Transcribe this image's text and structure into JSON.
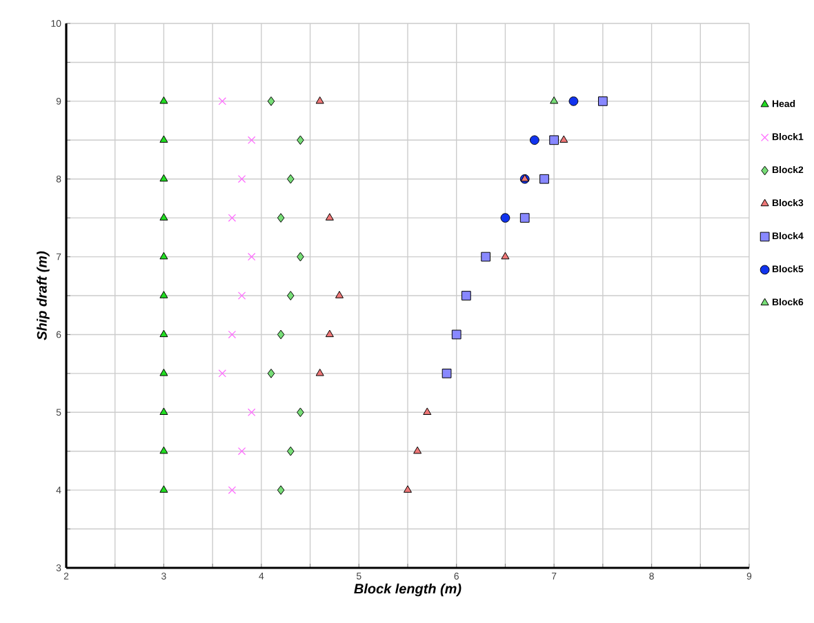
{
  "chart_data": {
    "type": "scatter",
    "xlabel": "Block length (m)",
    "ylabel": "Ship draft (m)",
    "xlim": [
      2,
      9
    ],
    "ylim": [
      3,
      10
    ],
    "xticks": [
      2,
      {
        "value": 2.5,
        "label": null
      },
      3,
      {
        "value": 3.5,
        "label": null
      },
      4,
      {
        "value": 4.5,
        "label": null
      },
      5,
      {
        "value": 5.5,
        "label": null
      },
      6,
      {
        "value": 6.5,
        "label": null
      },
      7,
      {
        "value": 7.5,
        "label": null
      },
      8,
      {
        "value": 8.5,
        "label": null
      },
      9
    ],
    "yticks": [
      3,
      {
        "value": 3.5,
        "label": null
      },
      4,
      {
        "value": 4.5,
        "label": null
      },
      5,
      {
        "value": 5.5,
        "label": null
      },
      6,
      {
        "value": 6.5,
        "label": null
      },
      7,
      {
        "value": 7.5,
        "label": null
      },
      8,
      {
        "value": 8.5,
        "label": null
      },
      9,
      {
        "value": 9.5,
        "label": null
      },
      10
    ],
    "grid": true,
    "legend": "right",
    "series": [
      {
        "name": "Head",
        "color": "#22dd22",
        "marker": "triangle",
        "x": [
          3,
          3,
          3,
          3,
          3,
          3,
          3,
          3,
          3,
          3,
          3
        ],
        "values": [
          9,
          8.5,
          8,
          7.5,
          7,
          6.5,
          6,
          5.5,
          5,
          4.5,
          4
        ]
      },
      {
        "name": "Block1",
        "color": "#ff66ff",
        "marker": "cross",
        "x": [
          3.6,
          3.9,
          3.8,
          3.7,
          3.9,
          3.8,
          3.7,
          3.6,
          3.9,
          3.8,
          3.7
        ],
        "values": [
          9,
          8.5,
          8,
          7.5,
          7,
          6.5,
          6,
          5.5,
          5,
          4.5,
          4
        ]
      },
      {
        "name": "Block2",
        "color": "#77dd77",
        "marker": "diamond",
        "x": [
          4.1,
          4.4,
          4.3,
          4.2,
          4.4,
          4.3,
          4.2,
          4.1,
          4.4,
          4.3,
          4.2
        ],
        "values": [
          9,
          8.5,
          8,
          7.5,
          7,
          6.5,
          6,
          5.5,
          5,
          4.5,
          4
        ]
      },
      {
        "name": "Block3",
        "color": "#ee7777",
        "marker": "triangle",
        "x": [
          4.6,
          7.1,
          6.7,
          4.7,
          6.5,
          4.8,
          4.7,
          4.6,
          5.7,
          5.6,
          5.5
        ],
        "values": [
          9,
          8.5,
          8,
          7.5,
          7,
          6.5,
          6,
          5.5,
          5,
          4.5,
          4
        ]
      },
      {
        "name": "Block4",
        "color": "#8888ff",
        "marker": "square",
        "x": [
          7.5,
          7.0,
          6.9,
          6.7,
          6.3,
          6.1,
          6.0,
          5.9
        ],
        "values": [
          9,
          8.5,
          8,
          7.5,
          7,
          6.5,
          6,
          5.5
        ]
      },
      {
        "name": "Block5",
        "color": "#1133ee",
        "marker": "circle",
        "x": [
          7.2,
          6.8,
          6.7,
          6.5
        ],
        "values": [
          9,
          8.5,
          8,
          7.5
        ]
      },
      {
        "name": "Block6",
        "color": "#77dd77",
        "marker": "triangle",
        "x": [
          7.0
        ],
        "values": [
          9
        ]
      }
    ]
  }
}
